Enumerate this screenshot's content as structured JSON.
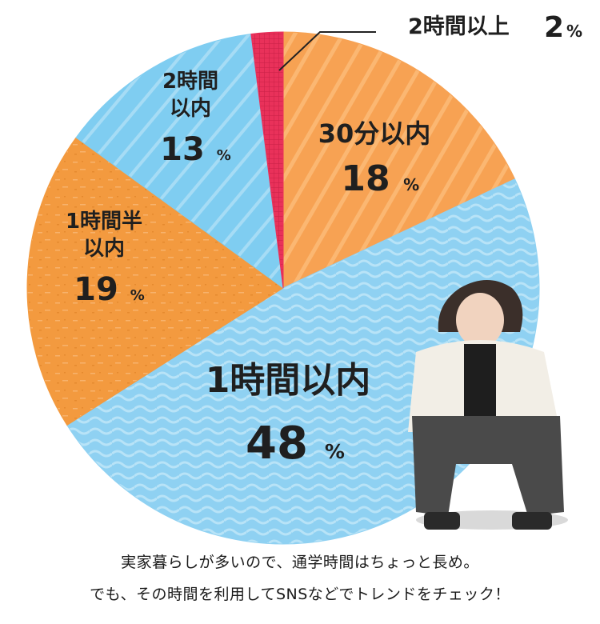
{
  "chart_data": {
    "type": "pie",
    "slices": [
      {
        "label_lines": [
          "30分以内"
        ],
        "value": 18,
        "value_text": "18",
        "color": "#f7a253"
      },
      {
        "label_lines": [
          "1時間以内"
        ],
        "value": 48,
        "value_text": "48",
        "color": "#8fd1f2"
      },
      {
        "label_lines": [
          "1時間半",
          "以内"
        ],
        "value": 19,
        "value_text": "19",
        "color": "#f39a3f"
      },
      {
        "label_lines": [
          "2時間",
          "以内"
        ],
        "value": 13,
        "value_text": "13",
        "color": "#7fcdf1"
      },
      {
        "label_lines": [
          "2時間以上"
        ],
        "value": 2,
        "value_text": "2",
        "color": "#e9315a"
      }
    ],
    "unit": "%"
  },
  "caption": {
    "line1": "実家暮らしが多いので、通学時間はちょっと長め。",
    "line2": "でも、その時間を利用してSNSなどでトレンドをチェック！"
  },
  "illustration": {
    "name": "seated-person-photo"
  }
}
